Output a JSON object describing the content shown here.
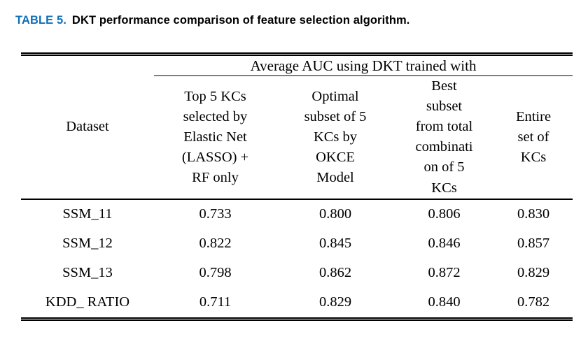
{
  "caption": {
    "label": "TABLE 5.",
    "text": "DKT performance comparison of feature selection algorithm."
  },
  "table": {
    "dataset_header": "Dataset",
    "span_header": "Average AUC using DKT trained with",
    "column_headers": [
      [
        "Top 5 KCs",
        "selected by",
        "Elastic Net",
        "(LASSO) +",
        "RF only"
      ],
      [
        "Optimal",
        "subset of 5",
        "KCs by",
        "OKCE",
        "Model"
      ],
      [
        "Best",
        "subset",
        "from total",
        "combinati",
        "on of 5",
        "KCs"
      ],
      [
        "Entire",
        "set of",
        "KCs"
      ]
    ],
    "rows": [
      {
        "dataset": "SSM_11",
        "values": [
          "0.733",
          "0.800",
          "0.806",
          "0.830"
        ]
      },
      {
        "dataset": "SSM_12",
        "values": [
          "0.822",
          "0.845",
          "0.846",
          "0.857"
        ]
      },
      {
        "dataset": "SSM_13",
        "values": [
          "0.798",
          "0.862",
          "0.872",
          "0.829"
        ]
      },
      {
        "dataset": "KDD_ RATIO",
        "values": [
          "0.711",
          "0.829",
          "0.840",
          "0.782"
        ]
      }
    ]
  },
  "chart_data": {
    "type": "table",
    "title": "DKT performance comparison of feature selection algorithm.",
    "span_header": "Average AUC using DKT trained with",
    "columns": [
      "Dataset",
      "Top 5 KCs selected by Elastic Net (LASSO) + RF only",
      "Optimal subset of 5 KCs by OKCE Model",
      "Best subset from total combination of 5 KCs",
      "Entire set of KCs"
    ],
    "rows": [
      [
        "SSM_11",
        0.733,
        0.8,
        0.806,
        0.83
      ],
      [
        "SSM_12",
        0.822,
        0.845,
        0.846,
        0.857
      ],
      [
        "SSM_13",
        0.798,
        0.862,
        0.872,
        0.829
      ],
      [
        "KDD_RATIO",
        0.711,
        0.829,
        0.84,
        0.782
      ]
    ]
  }
}
